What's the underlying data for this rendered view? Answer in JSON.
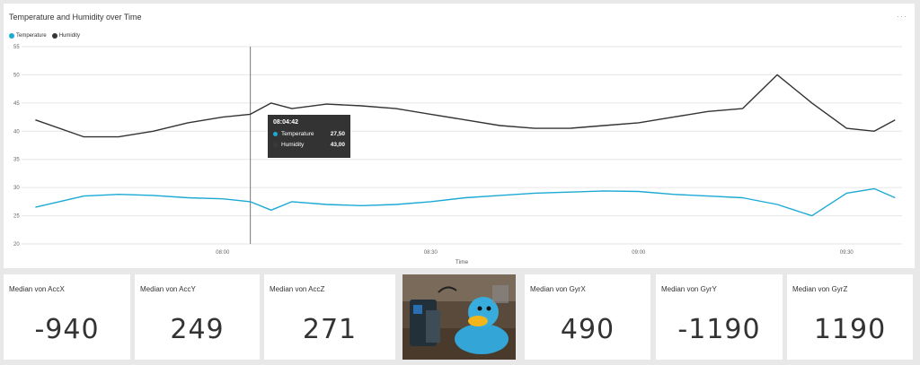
{
  "chart": {
    "title": "Temperature and Humidity over Time",
    "more_icon": "···",
    "legend": [
      {
        "label": "Temperature",
        "color": "#1ca9d4"
      },
      {
        "label": "Humidity",
        "color": "#333333"
      }
    ],
    "xlabel": "Time",
    "tooltip": {
      "time": "08:04:42",
      "rows": [
        {
          "label": "Temperature",
          "value": "27,50",
          "color": "#1ca9d4"
        },
        {
          "label": "Humidity",
          "value": "43,00",
          "color": "#3a3a3a"
        }
      ]
    }
  },
  "chart_data": {
    "type": "line",
    "title": "Temperature and Humidity over Time",
    "xlabel": "Time",
    "ylabel": "",
    "ylim": [
      20,
      55
    ],
    "yticks": [
      "20",
      "25",
      "30",
      "35",
      "40",
      "45",
      "50",
      "55"
    ],
    "xticks": [
      "08:00",
      "08:30",
      "09:00",
      "09:30"
    ],
    "grid": true,
    "legend": "top-left",
    "x": [
      "07:33",
      "07:40",
      "07:45",
      "07:50",
      "07:55",
      "08:00",
      "08:04",
      "08:07",
      "08:10",
      "08:15",
      "08:20",
      "08:25",
      "08:30",
      "08:35",
      "08:40",
      "08:45",
      "08:50",
      "08:55",
      "09:00",
      "09:05",
      "09:10",
      "09:15",
      "09:20",
      "09:25",
      "09:30",
      "09:34",
      "09:37"
    ],
    "series": [
      {
        "name": "Temperature",
        "color": "#1ca9d4",
        "values": [
          26.5,
          28.5,
          28.8,
          28.6,
          28.2,
          28.0,
          27.5,
          26.0,
          27.5,
          27.0,
          26.8,
          27.0,
          27.5,
          28.2,
          28.6,
          29.0,
          29.2,
          29.4,
          29.3,
          28.8,
          28.5,
          28.2,
          27.0,
          25.0,
          29.0,
          29.8,
          28.2
        ]
      },
      {
        "name": "Humidity",
        "color": "#333333",
        "values": [
          42.0,
          39.0,
          39.0,
          40.0,
          41.5,
          42.5,
          43.0,
          45.0,
          44.0,
          44.8,
          44.5,
          44.0,
          43.0,
          42.0,
          41.0,
          40.5,
          40.5,
          41.0,
          41.5,
          42.5,
          43.5,
          44.0,
          50.0,
          45.0,
          40.5,
          40.0,
          42.0
        ]
      }
    ]
  },
  "cards": [
    {
      "title": "Median von AccX",
      "value": "-940"
    },
    {
      "title": "Median von AccY",
      "value": "249"
    },
    {
      "title": "Median von AccZ",
      "value": "271"
    },
    {
      "title": "Median von GyrX",
      "value": "490"
    },
    {
      "title": "Median von GyrY",
      "value": "-1190"
    },
    {
      "title": "Median von GyrZ",
      "value": "1190"
    }
  ],
  "photo": {
    "icon": "rubber-duck-photo"
  }
}
